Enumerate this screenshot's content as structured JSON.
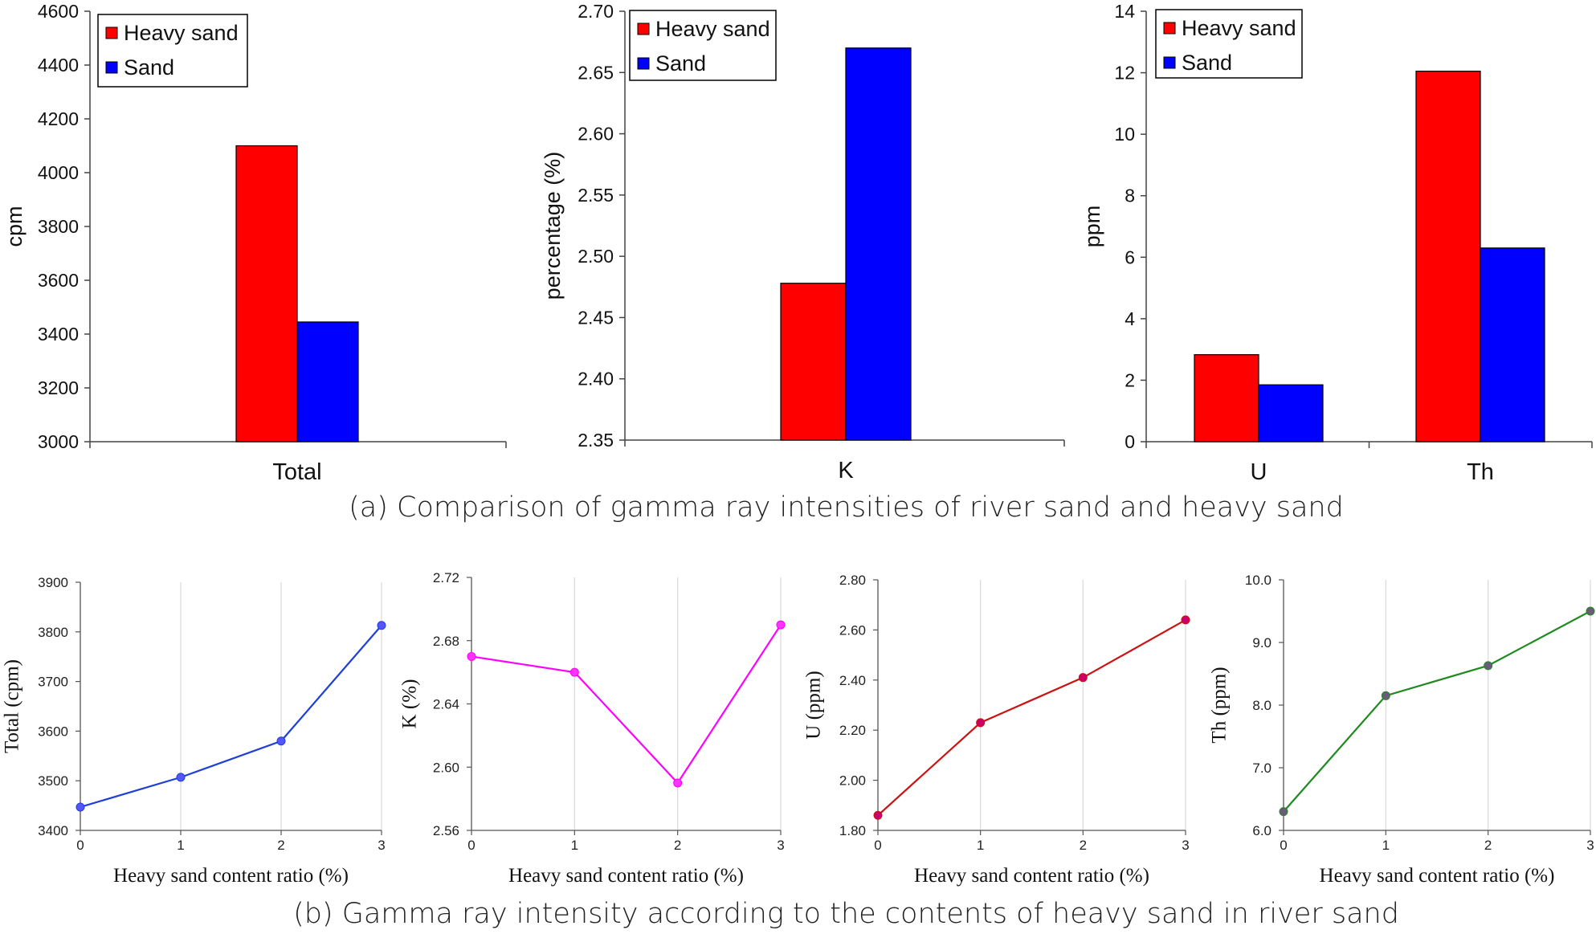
{
  "captions": {
    "a": "(a) Comparison of gamma ray intensities of river sand and heavy sand",
    "b": "(b) Gamma ray intensity according to the contents of heavy sand in river sand"
  },
  "colors": {
    "heavy_sand": "#ff0000",
    "sand": "#0000ff",
    "total_line": "#1f3fd9",
    "k_line": "#ff00ff",
    "u_line": "#cc1111",
    "th_line": "#1f8a1f"
  },
  "chart_data": [
    {
      "type": "bar",
      "panel": "a",
      "categories": [
        "Total"
      ],
      "series": [
        {
          "name": "Heavy sand",
          "values": [
            4100
          ]
        },
        {
          "name": "Sand",
          "values": [
            3445
          ]
        }
      ],
      "ylabel": "cpm",
      "ylim": [
        3000,
        4600
      ],
      "yticks": [
        "3000",
        "3200",
        "3400",
        "3600",
        "3800",
        "4000",
        "4200",
        "4400",
        "4600"
      ],
      "legend": "top-left"
    },
    {
      "type": "bar",
      "panel": "a",
      "categories": [
        "K"
      ],
      "series": [
        {
          "name": "Heavy sand",
          "values": [
            2.478
          ]
        },
        {
          "name": "Sand",
          "values": [
            2.67
          ]
        }
      ],
      "ylabel": "percentage (%)",
      "ylim": [
        2.35,
        2.7
      ],
      "yticks": [
        "2.35",
        "2.40",
        "2.45",
        "2.50",
        "2.55",
        "2.60",
        "2.65",
        "2.70"
      ],
      "legend": "top-left"
    },
    {
      "type": "bar",
      "panel": "a",
      "categories": [
        "U",
        "Th"
      ],
      "series": [
        {
          "name": "Heavy sand",
          "values": [
            2.83,
            12.05
          ]
        },
        {
          "name": "Sand",
          "values": [
            1.85,
            6.3
          ]
        }
      ],
      "ylabel": "ppm",
      "ylim": [
        0,
        14
      ],
      "yticks": [
        "0",
        "2",
        "4",
        "6",
        "8",
        "10",
        "12",
        "14"
      ],
      "legend": "top-left"
    },
    {
      "type": "line",
      "panel": "b",
      "x": [
        0,
        1,
        2,
        3
      ],
      "xticks": [
        "0",
        "1",
        "2",
        "3"
      ],
      "series": [
        {
          "values": [
            3447,
            3507,
            3580,
            3813
          ]
        }
      ],
      "xlabel": "Heavy  sand  content  ratio  (%)",
      "ylabel": "Total (cpm)",
      "ylim": [
        3400,
        3900
      ],
      "yticks": [
        "3400",
        "3500",
        "3600",
        "3700",
        "3800",
        "3900"
      ],
      "grid": "vertical"
    },
    {
      "type": "line",
      "panel": "b",
      "x": [
        0,
        1,
        2,
        3
      ],
      "xticks": [
        "0",
        "1",
        "2",
        "3"
      ],
      "series": [
        {
          "values": [
            2.67,
            2.66,
            2.59,
            2.69
          ]
        }
      ],
      "xlabel": "Heavy  sand  content  ratio  (%)",
      "ylabel": "K (%)",
      "ylim": [
        2.56,
        2.72
      ],
      "yticks": [
        "2.56",
        "2.60",
        "2.64",
        "2.68",
        "2.72"
      ],
      "grid": "vertical"
    },
    {
      "type": "line",
      "panel": "b",
      "x": [
        0,
        1,
        2,
        3
      ],
      "xticks": [
        "0",
        "1",
        "2",
        "3"
      ],
      "series": [
        {
          "values": [
            1.86,
            2.23,
            2.41,
            2.64
          ]
        }
      ],
      "xlabel": "Heavy  sand  content  ratio  (%)",
      "ylabel": "U (ppm)",
      "ylim": [
        1.8,
        2.8
      ],
      "yticks": [
        "1.80",
        "2.00",
        "2.20",
        "2.40",
        "2.60",
        "2.80"
      ],
      "grid": "vertical"
    },
    {
      "type": "line",
      "panel": "b",
      "x": [
        0,
        1,
        2,
        3
      ],
      "xticks": [
        "0",
        "1",
        "2",
        "3"
      ],
      "series": [
        {
          "values": [
            6.3,
            8.15,
            8.63,
            9.5
          ]
        }
      ],
      "xlabel": "Heavy  sand  content  ratio  (%)",
      "ylabel": "Th (ppm)",
      "ylim": [
        6,
        10
      ],
      "yticks": [
        "6.0",
        "7.0",
        "8.0",
        "9.0",
        "10.0"
      ],
      "grid": "vertical"
    }
  ]
}
